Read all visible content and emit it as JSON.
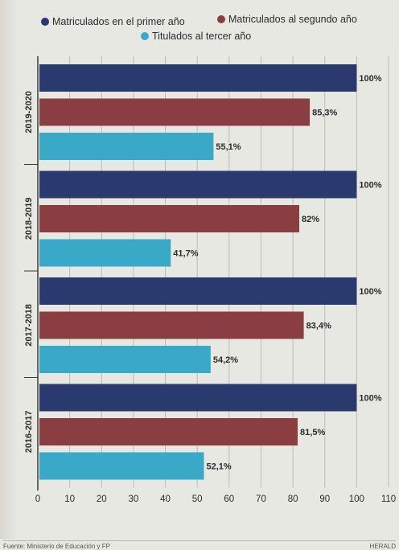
{
  "chart_data": {
    "type": "bar",
    "orientation": "horizontal",
    "groups": [
      "2019-2020",
      "2018-2019",
      "2017-2018",
      "2016-2017"
    ],
    "series": [
      {
        "name": "Matriculados en el primer año",
        "color": "#2b3a6e",
        "values": [
          100,
          100,
          100,
          100
        ],
        "labels": [
          "100%",
          "100%",
          "100%",
          "100%"
        ]
      },
      {
        "name": "Matriculados al segundo año",
        "color": "#8b3e42",
        "values": [
          85.3,
          82,
          83.4,
          81.5
        ],
        "labels": [
          "85,3%",
          "82%",
          "83,4%",
          "81,5%"
        ]
      },
      {
        "name": "Titulados al tercer año",
        "color": "#3aa9c8",
        "values": [
          55.1,
          41.7,
          54.2,
          52.1
        ],
        "labels": [
          "55,1%",
          "41,7%",
          "54,2%",
          "52,1%"
        ]
      }
    ],
    "x_ticks": [
      "0",
      "10",
      "20",
      "30",
      "40",
      "50",
      "60",
      "70",
      "80",
      "90",
      "100",
      "110"
    ],
    "xlim": [
      0,
      110
    ],
    "grid": true,
    "legend_position": "top"
  },
  "footer": {
    "source": "Fuente: Ministerio de Educación y FP",
    "brand": "HERALD"
  }
}
